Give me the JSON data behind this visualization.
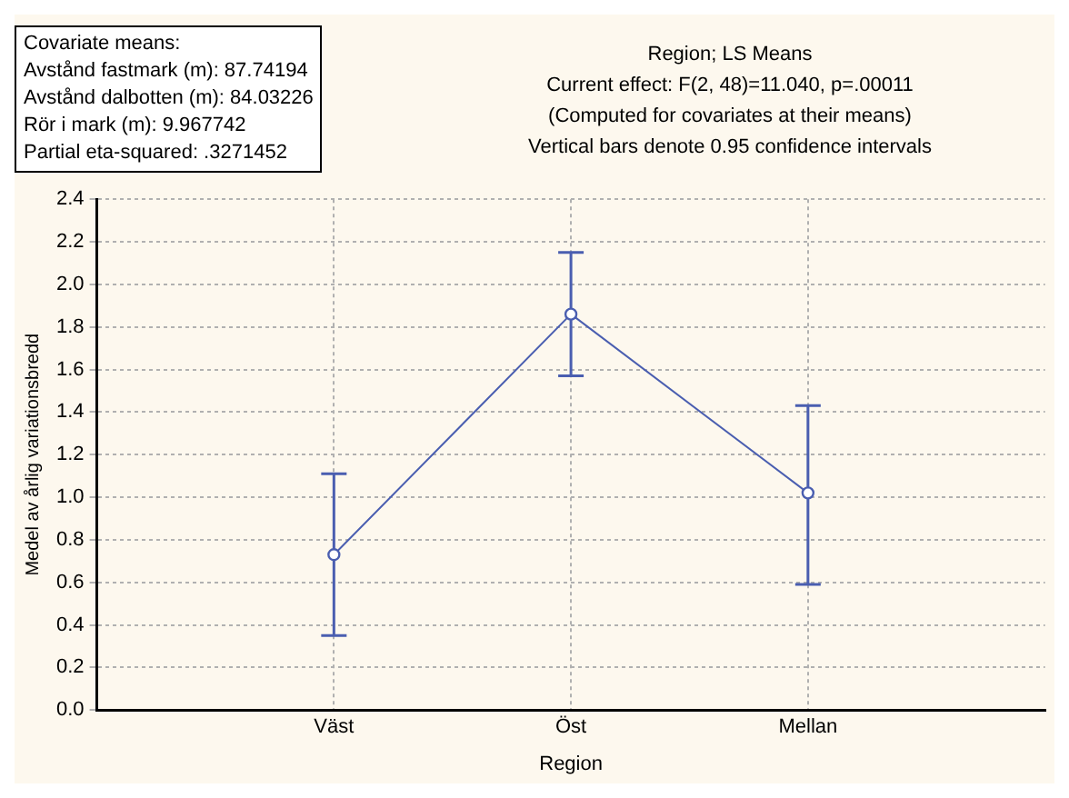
{
  "chart_data": {
    "type": "line",
    "title": "Region; LS Means",
    "subtitle": "Current effect: F(2, 48)=11.040, p=.00011\n(Computed for covariates at their means)\nVertical bars denote 0.95 confidence intervals",
    "xlabel": "Region",
    "ylabel": "Medel av årlig variationsbredd",
    "annotations": [
      "Covariate means:",
      "Avstånd fastmark (m): 87.74194",
      "Avstånd dalbotten (m): 84.03226",
      "Rör i mark (m): 9.967742",
      "Partial eta-squared: .3271452"
    ],
    "categories": [
      "Väst",
      "Öst",
      "Mellan"
    ],
    "series": [
      {
        "color": "#4a5eb0",
        "values": [
          0.73,
          1.86,
          1.02
        ],
        "errors": [
          [
            0.35,
            1.11
          ],
          [
            1.57,
            2.15
          ],
          [
            0.59,
            1.43
          ]
        ]
      }
    ],
    "ylim": [
      0,
      2.4
    ],
    "yticks": [
      {
        "value": 0,
        "label": "0.0"
      },
      {
        "value": 0.2,
        "label": "0.2"
      },
      {
        "value": 0.4,
        "label": "0.4"
      },
      {
        "value": 0.6,
        "label": "0.6"
      },
      {
        "value": 0.8,
        "label": "0.8"
      },
      {
        "value": 1,
        "label": "1.0"
      },
      {
        "value": 1.2,
        "label": "1.2"
      },
      {
        "value": 1.4,
        "label": "1.4"
      },
      {
        "value": 1.6,
        "label": "1.6"
      },
      {
        "value": 1.8,
        "label": "1.8"
      },
      {
        "value": 2,
        "label": "2.0"
      },
      {
        "value": 2.2,
        "label": "2.2"
      },
      {
        "value": 2.4,
        "label": "2.4"
      }
    ],
    "grid": true,
    "marker": "circle",
    "line_style": "solid",
    "legend": false
  }
}
